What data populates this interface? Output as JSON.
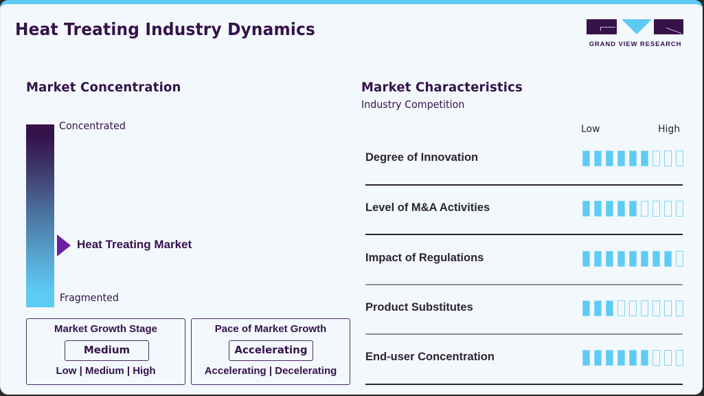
{
  "header": {
    "title": "Heat Treating Industry Dynamics",
    "logo_text": "GRAND VIEW RESEARCH"
  },
  "colors": {
    "accent": "#5ecbf5",
    "brand": "#35124a",
    "marker": "#6b1fa0",
    "background": "#f3f8fc"
  },
  "concentration": {
    "title": "Market Concentration",
    "top_label": "Concentrated",
    "bottom_label": "Fragmented",
    "marker_label": "Heat Treating Market"
  },
  "growth_stage": {
    "title": "Market Growth Stage",
    "selected": "Medium",
    "options": "Low | Medium | High"
  },
  "growth_pace": {
    "title": "Pace of Market Growth",
    "selected": "Accelerating",
    "options": "Accelerating | Decelerating"
  },
  "characteristics": {
    "title": "Market Characteristics",
    "subtitle": "Industry Competition",
    "scale_low": "Low",
    "scale_high": "High",
    "max": 9,
    "rows": [
      {
        "label": "Degree of Innovation",
        "value": 6
      },
      {
        "label": "Level of M&A Activities",
        "value": 5
      },
      {
        "label": "Impact of Regulations",
        "value": 8
      },
      {
        "label": "Product Substitutes",
        "value": 3
      },
      {
        "label": "End-user Concentration",
        "value": 6
      }
    ]
  }
}
